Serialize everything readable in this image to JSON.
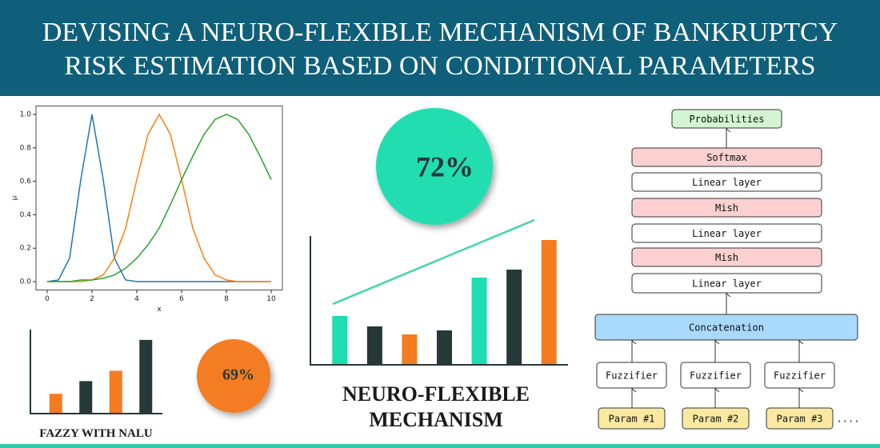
{
  "header": {
    "title": "DEVISING A NEURO-FLEXIBLE MECHANISM OF BANKRUPTCY RISK ESTIMATION BASED ON CONDITIONAL PARAMETERS"
  },
  "chart_data": [
    {
      "type": "line",
      "xlabel": "x",
      "ylabel": "μ",
      "x": [
        0,
        0.5,
        1,
        1.5,
        2,
        2.5,
        3,
        3.5,
        4,
        4.5,
        5,
        5.5,
        6,
        6.5,
        7,
        7.5,
        8,
        8.5,
        9,
        9.5,
        10
      ],
      "series": [
        {
          "color": "#1f77b4",
          "values": [
            0,
            0.01,
            0.14,
            0.61,
            1,
            0.61,
            0.14,
            0.01,
            0,
            0,
            0,
            0,
            0,
            0,
            0,
            0,
            0,
            0,
            0,
            0,
            0
          ]
        },
        {
          "color": "#ff7f0e",
          "values": [
            0,
            0,
            0,
            0,
            0.01,
            0.04,
            0.14,
            0.32,
            0.61,
            0.88,
            1,
            0.88,
            0.61,
            0.32,
            0.14,
            0.04,
            0.01,
            0,
            0,
            0,
            0
          ]
        },
        {
          "color": "#2ca02c",
          "values": [
            0,
            0,
            0,
            0.01,
            0.01,
            0.02,
            0.04,
            0.08,
            0.14,
            0.22,
            0.32,
            0.46,
            0.61,
            0.75,
            0.88,
            0.97,
            1,
            0.97,
            0.88,
            0.75,
            0.61
          ]
        }
      ],
      "xlim": [
        -0.5,
        10.5
      ],
      "xticks": [
        0,
        2,
        4,
        6,
        8,
        10
      ],
      "ylim": [
        -0.05,
        1.05
      ],
      "yticks": [
        {
          "value": 0,
          "label": "0.0"
        },
        {
          "value": 0.2,
          "label": "0.2"
        },
        {
          "value": 0.4,
          "label": "0.4"
        },
        {
          "value": 0.6,
          "label": "0.6"
        },
        {
          "value": 0.8,
          "label": "0.8"
        },
        {
          "value": 1,
          "label": "1.0"
        }
      ]
    },
    {
      "type": "bar",
      "title": "FAZZY WITH NALU",
      "categories": [
        null,
        null,
        null,
        null
      ],
      "values": [
        24,
        40,
        53,
        92
      ],
      "colors": [
        "#f47b20",
        "#263838",
        "#f47b20",
        "#263838"
      ],
      "ylim": [
        0,
        105
      ]
    },
    {
      "type": "bar",
      "title": "NEURO-FLEXIBLE MECHANISM",
      "categories": [
        null,
        null,
        null,
        null,
        null,
        null,
        null
      ],
      "values": [
        60,
        47,
        37,
        42,
        108,
        118,
        155
      ],
      "colors": [
        "#1fddb0",
        "#263838",
        "#f47b20",
        "#263838",
        "#1fddb0",
        "#263838",
        "#f47b20"
      ],
      "ylim": [
        0,
        160
      ]
    }
  ],
  "badges": [
    "72%",
    "69%"
  ],
  "diagram": {
    "nodes": [
      "Probabilities",
      "Softmax",
      "Linear layer",
      "Mish",
      "Linear layer",
      "Mish",
      "Linear layer",
      "Concatenation",
      "Fuzzifier",
      "Fuzzifier",
      "Fuzzifier",
      "Param #1",
      "Param #2",
      "Param #3"
    ],
    "ellipsis": "...."
  }
}
